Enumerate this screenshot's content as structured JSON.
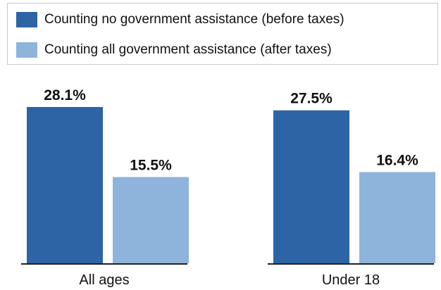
{
  "legend": {
    "items": [
      {
        "label": "Counting no government assistance (before taxes)",
        "color": "#2d64a5"
      },
      {
        "label": "Counting all government assistance (after taxes)",
        "color": "#8fb4dc"
      }
    ]
  },
  "chart_data": {
    "type": "bar",
    "categories": [
      "All ages",
      "Under 18"
    ],
    "series": [
      {
        "name": "Counting no government assistance (before taxes)",
        "values": [
          28.1,
          27.5
        ],
        "labels": [
          "28.1%",
          "27.5%"
        ],
        "color": "#2d64a5"
      },
      {
        "name": "Counting all government assistance (after taxes)",
        "values": [
          15.5,
          16.4
        ],
        "labels": [
          "15.5%",
          "16.4%"
        ],
        "color": "#8fb4dc"
      }
    ],
    "unit": "%",
    "ylim": [
      0,
      28.1
    ],
    "legend_position": "top"
  }
}
